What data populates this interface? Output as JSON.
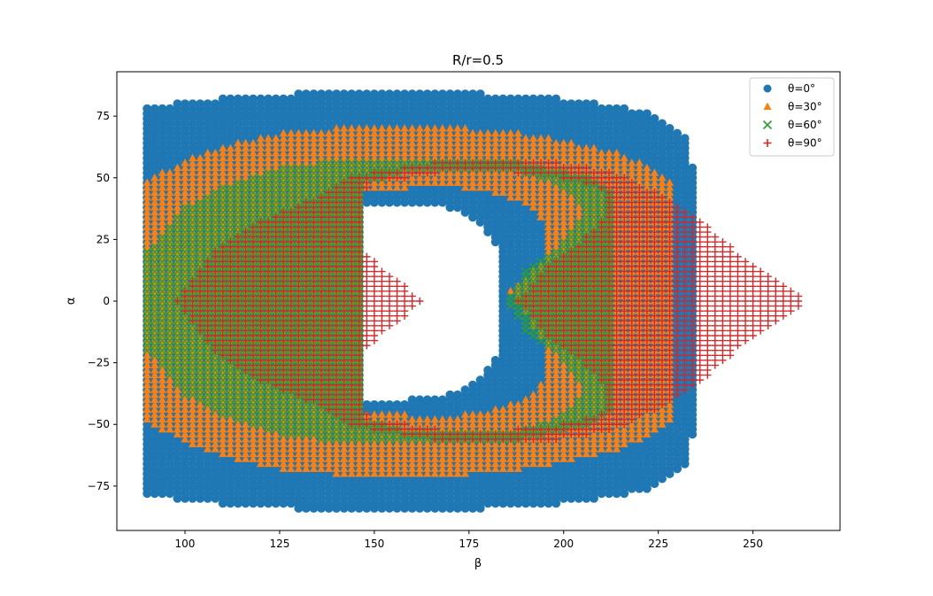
{
  "chart_data": {
    "type": "scatter",
    "title": "R/r=0.5",
    "xlabel": "β",
    "ylabel": "α",
    "xlim": [
      82,
      273
    ],
    "ylim": [
      -93,
      93
    ],
    "xticks": [
      100,
      125,
      150,
      175,
      200,
      225,
      250
    ],
    "yticks": [
      -75,
      -50,
      -25,
      0,
      25,
      50,
      75
    ],
    "grid": false,
    "legend_position": "top-right",
    "series": [
      {
        "name": "θ=0°",
        "marker": "circle",
        "color": "#1f77b4",
        "region": {
          "outer": [
            [
              90,
              78
            ],
            [
              100,
              81
            ],
            [
              130,
              84
            ],
            [
              160,
              85
            ],
            [
              180,
              84
            ],
            [
              200,
              82
            ],
            [
              215,
              79
            ],
            [
              225,
              75
            ],
            [
              232,
              67
            ],
            [
              235,
              48
            ],
            [
              235,
              -48
            ],
            [
              232,
              -67
            ],
            [
              225,
              -75
            ],
            [
              215,
              -79
            ],
            [
              200,
              -82
            ],
            [
              180,
              -84
            ],
            [
              160,
              -85
            ],
            [
              130,
              -84
            ],
            [
              100,
              -81
            ],
            [
              90,
              -78
            ]
          ],
          "holes": [
            [
              [
                147,
                40
              ],
              [
                160,
                40
              ],
              [
                170,
                38
              ],
              [
                178,
                32
              ],
              [
                184,
                20
              ],
              [
                184,
                -20
              ],
              [
                178,
                -32
              ],
              [
                170,
                -38
              ],
              [
                160,
                -40
              ],
              [
                147,
                -40
              ]
            ]
          ]
        }
      },
      {
        "name": "θ=30°",
        "marker": "triangle",
        "color": "#ff7f0e",
        "region": {
          "outer": [
            [
              90,
              49
            ],
            [
              100,
              57
            ],
            [
              110,
              63
            ],
            [
              125,
              68
            ],
            [
              145,
              71
            ],
            [
              160,
              71
            ],
            [
              175,
              70
            ],
            [
              195,
              67
            ],
            [
              215,
              60
            ],
            [
              228,
              50
            ],
            [
              230,
              45
            ],
            [
              230,
              -45
            ],
            [
              228,
              -50
            ],
            [
              215,
              -60
            ],
            [
              195,
              -67
            ],
            [
              175,
              -70
            ],
            [
              160,
              -71
            ],
            [
              145,
              -71
            ],
            [
              125,
              -68
            ],
            [
              110,
              -63
            ],
            [
              100,
              -57
            ],
            [
              90,
              -49
            ]
          ],
          "holes": [
            [
              [
                148,
                44
              ],
              [
                165,
                47
              ],
              [
                180,
                45
              ],
              [
                190,
                40
              ],
              [
                196,
                30
              ],
              [
                194,
                15
              ],
              [
                186,
                4
              ],
              [
                194,
                -15
              ],
              [
                196,
                -30
              ],
              [
                190,
                -40
              ],
              [
                180,
                -45
              ],
              [
                165,
                -47
              ],
              [
                148,
                -44
              ]
            ]
          ]
        }
      },
      {
        "name": "θ=60°",
        "marker": "x",
        "color": "#2ca02c",
        "region": {
          "outer": [
            [
              90,
              20
            ],
            [
              100,
              38
            ],
            [
              110,
              47
            ],
            [
              125,
              54
            ],
            [
              140,
              57
            ],
            [
              160,
              57
            ],
            [
              175,
              58
            ],
            [
              190,
              56
            ],
            [
              205,
              51
            ],
            [
              213,
              45
            ],
            [
              213,
              -45
            ],
            [
              205,
              -51
            ],
            [
              190,
              -56
            ],
            [
              175,
              -58
            ],
            [
              160,
              -57
            ],
            [
              140,
              -57
            ],
            [
              125,
              -54
            ],
            [
              110,
              -47
            ],
            [
              100,
              -38
            ],
            [
              90,
              -20
            ]
          ],
          "holes": [
            [
              [
                147,
                48
              ],
              [
                160,
                53
              ],
              [
                175,
                54
              ],
              [
                190,
                52
              ],
              [
                200,
                46
              ],
              [
                206,
                37
              ],
              [
                200,
                24
              ],
              [
                190,
                12
              ],
              [
                185,
                0
              ],
              [
                190,
                -12
              ],
              [
                200,
                -24
              ],
              [
                206,
                -37
              ],
              [
                200,
                -46
              ],
              [
                190,
                -52
              ],
              [
                175,
                -54
              ],
              [
                160,
                -53
              ],
              [
                147,
                -48
              ]
            ]
          ]
        }
      },
      {
        "name": "θ=90°",
        "marker": "plus",
        "color": "#d62728",
        "region": {
          "outer": [
            [
              97,
              0
            ],
            [
              108,
              20
            ],
            [
              118,
              31
            ],
            [
              132,
              40
            ],
            [
              145,
              51
            ],
            [
              160,
              55
            ],
            [
              175,
              58
            ],
            [
              195,
              57
            ],
            [
              212,
              53
            ],
            [
              222,
              46
            ],
            [
              235,
              35
            ],
            [
              245,
              21
            ],
            [
              255,
              10
            ],
            [
              263,
              2
            ],
            [
              263,
              -2
            ],
            [
              255,
              -10
            ],
            [
              245,
              -21
            ],
            [
              235,
              -35
            ],
            [
              222,
              -46
            ],
            [
              212,
              -53
            ],
            [
              195,
              -57
            ],
            [
              175,
              -58
            ],
            [
              160,
              -55
            ],
            [
              145,
              -51
            ],
            [
              132,
              -40
            ],
            [
              118,
              -31
            ],
            [
              108,
              -20
            ]
          ],
          "holes": [
            [
              [
                147,
                42
              ],
              [
                147,
                20
              ],
              [
                155,
                10
              ],
              [
                163,
                0
              ],
              [
                155,
                -10
              ],
              [
                147,
                -20
              ],
              [
                147,
                -42
              ],
              [
                150,
                -48
              ],
              [
                175,
                -54
              ],
              [
                200,
                -50
              ],
              [
                212,
                -45
              ],
              [
                212,
                -35
              ],
              [
                205,
                -25
              ],
              [
                196,
                -15
              ],
              [
                188,
                0
              ],
              [
                196,
                15
              ],
              [
                205,
                25
              ],
              [
                212,
                35
              ],
              [
                212,
                45
              ],
              [
                200,
                50
              ],
              [
                175,
                54
              ],
              [
                150,
                48
              ]
            ]
          ]
        }
      }
    ]
  }
}
